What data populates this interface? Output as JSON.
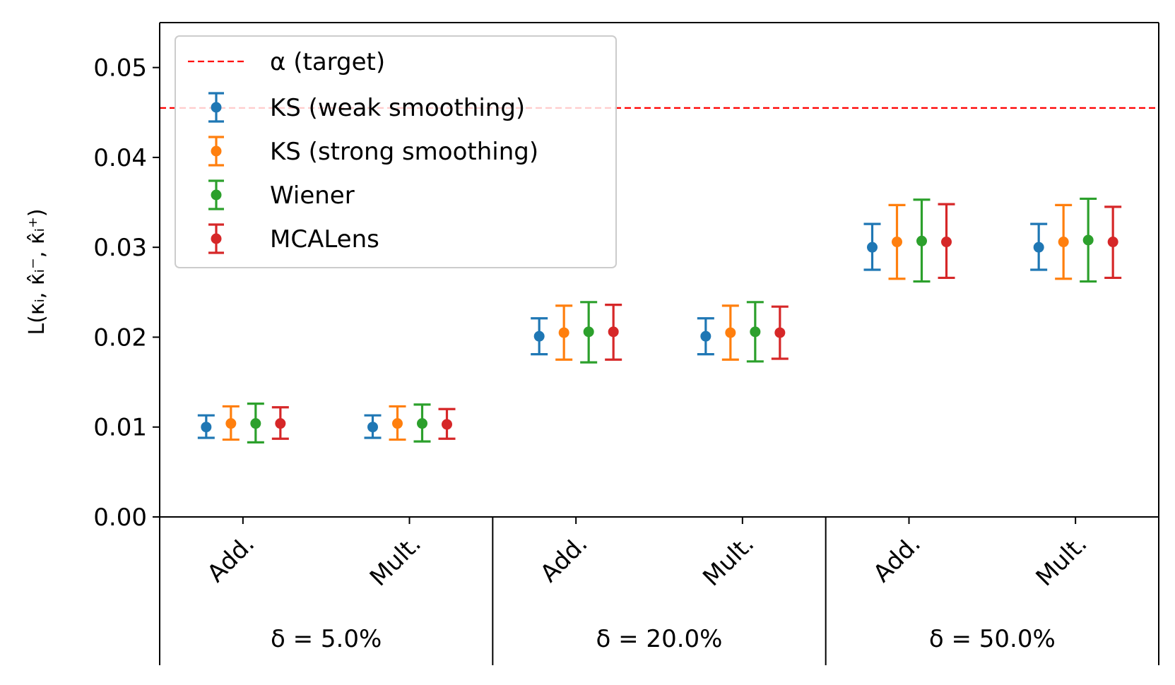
{
  "chart_data": {
    "type": "scatter",
    "title": "",
    "xlabel": "",
    "ylabel": "L(κᵢ, κ̂ᵢ⁻, κ̂ᵢ⁺)",
    "ylim": [
      0,
      0.055
    ],
    "yticks": [
      "0.00",
      "0.01",
      "0.02",
      "0.03",
      "0.04",
      "0.05"
    ],
    "grid": false,
    "legend_position": "upper-left",
    "categories": [
      "Add.",
      "Mult.",
      "Add.",
      "Mult.",
      "Add.",
      "Mult."
    ],
    "groups": [
      "δ = 5.0%",
      "δ = 20.0%",
      "δ = 50.0%"
    ],
    "target": {
      "name": "α (target)",
      "value": 0.0455,
      "color": "#ff0000"
    },
    "series": [
      {
        "name": "KS (weak smoothing)",
        "color": "#1f77b4",
        "values": [
          0.01,
          0.01,
          0.0201,
          0.0201,
          0.03,
          0.03
        ],
        "lower": [
          0.0088,
          0.0088,
          0.0181,
          0.0181,
          0.0275,
          0.0275
        ],
        "upper": [
          0.0113,
          0.0113,
          0.0221,
          0.0221,
          0.0326,
          0.0326
        ]
      },
      {
        "name": "KS (strong smoothing)",
        "color": "#ff7f0e",
        "values": [
          0.0104,
          0.0104,
          0.0205,
          0.0205,
          0.0306,
          0.0306
        ],
        "lower": [
          0.0086,
          0.0086,
          0.0175,
          0.0175,
          0.0265,
          0.0265
        ],
        "upper": [
          0.0123,
          0.0123,
          0.0235,
          0.0235,
          0.0347,
          0.0347
        ]
      },
      {
        "name": "Wiener",
        "color": "#2ca02c",
        "values": [
          0.0104,
          0.0104,
          0.0206,
          0.0206,
          0.0307,
          0.0308
        ],
        "lower": [
          0.0083,
          0.0084,
          0.0172,
          0.0173,
          0.0262,
          0.0262
        ],
        "upper": [
          0.0126,
          0.0125,
          0.0239,
          0.0239,
          0.0353,
          0.0354
        ]
      },
      {
        "name": "MCALens",
        "color": "#d62728",
        "values": [
          0.0104,
          0.0103,
          0.0206,
          0.0205,
          0.0306,
          0.0306
        ],
        "lower": [
          0.0087,
          0.0087,
          0.0175,
          0.0176,
          0.0266,
          0.0266
        ],
        "upper": [
          0.0122,
          0.012,
          0.0236,
          0.0234,
          0.0348,
          0.0345
        ]
      }
    ]
  }
}
